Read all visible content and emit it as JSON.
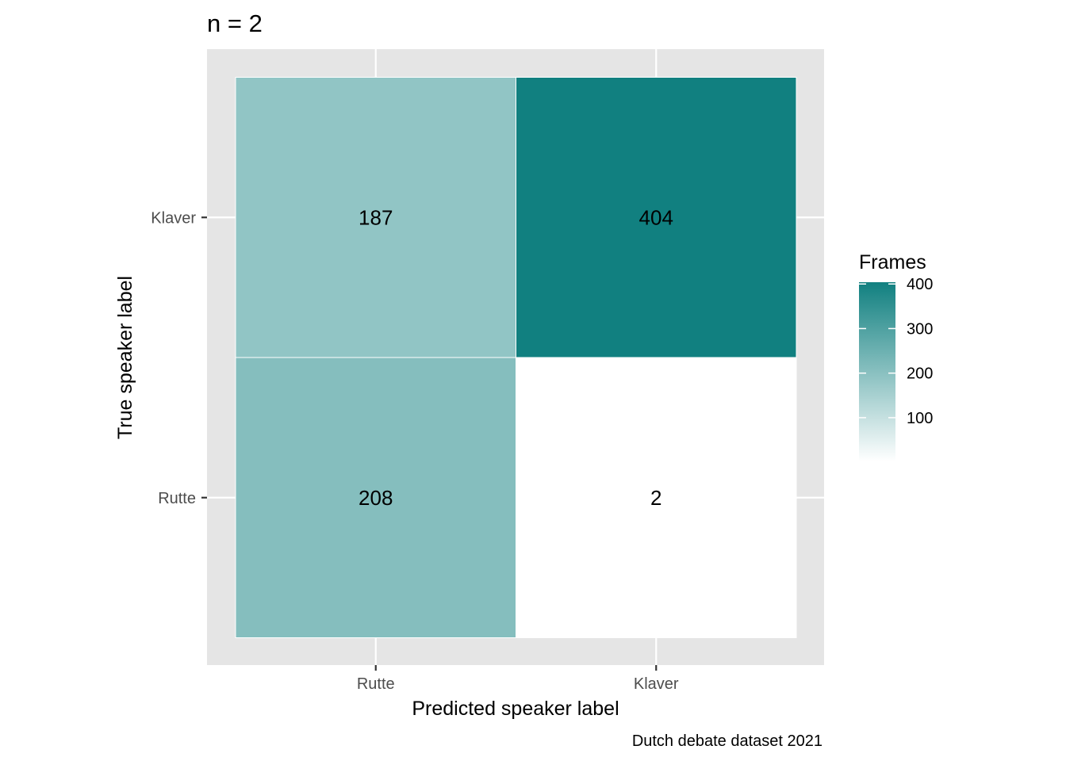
{
  "chart_data": {
    "type": "heatmap",
    "title": "n = 2",
    "xlabel": "Predicted speaker label",
    "ylabel": "True speaker label",
    "caption": "Dutch debate dataset 2021",
    "x_categories": [
      "Rutte",
      "Klaver"
    ],
    "y_categories": [
      "Rutte",
      "Klaver"
    ],
    "cells": [
      {
        "x": "Rutte",
        "y": "Klaver",
        "value": 187,
        "label": "187"
      },
      {
        "x": "Klaver",
        "y": "Klaver",
        "value": 404,
        "label": "404"
      },
      {
        "x": "Rutte",
        "y": "Rutte",
        "value": 208,
        "label": "208"
      },
      {
        "x": "Klaver",
        "y": "Rutte",
        "value": 2,
        "label": "2"
      }
    ],
    "legend": {
      "title": "Frames",
      "position": "right",
      "ticks": [
        100,
        200,
        300,
        400
      ],
      "tick_labels": [
        "100",
        "200",
        "300",
        "400"
      ],
      "range": [
        2,
        404
      ],
      "low_color": "#ffffff",
      "high_color": "#118080"
    },
    "grid": true,
    "panel_background": "#e5e5e5"
  }
}
